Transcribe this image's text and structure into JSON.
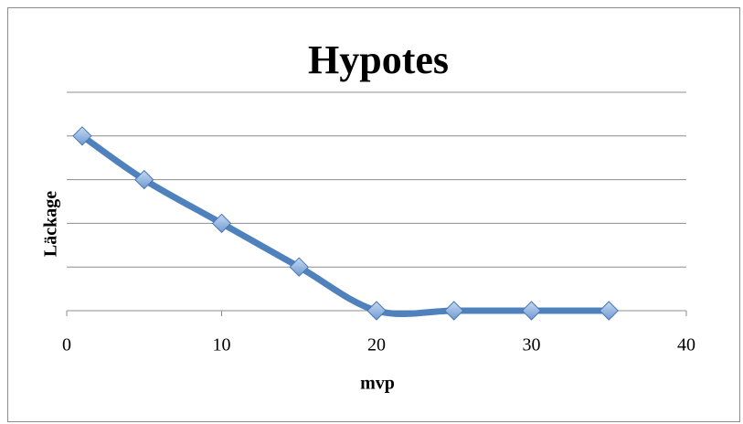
{
  "chart_data": {
    "type": "line",
    "title": "Hypotes",
    "x_label": "mvp",
    "y_label": "Läckage",
    "x": [
      1,
      5,
      10,
      15,
      20,
      25,
      30,
      35
    ],
    "series": [
      {
        "name": "Läckage",
        "color": "#4f81bd",
        "values": [
          4,
          3,
          2,
          1,
          0,
          0,
          0,
          0
        ]
      }
    ],
    "xlim": [
      0,
      40
    ],
    "xticks": [
      0,
      10,
      20,
      30,
      40
    ],
    "ylim": [
      0,
      5
    ],
    "yticks": [
      0,
      1,
      2,
      3,
      4,
      5
    ],
    "ytick_labels": false,
    "grid": true,
    "smooth": true
  }
}
